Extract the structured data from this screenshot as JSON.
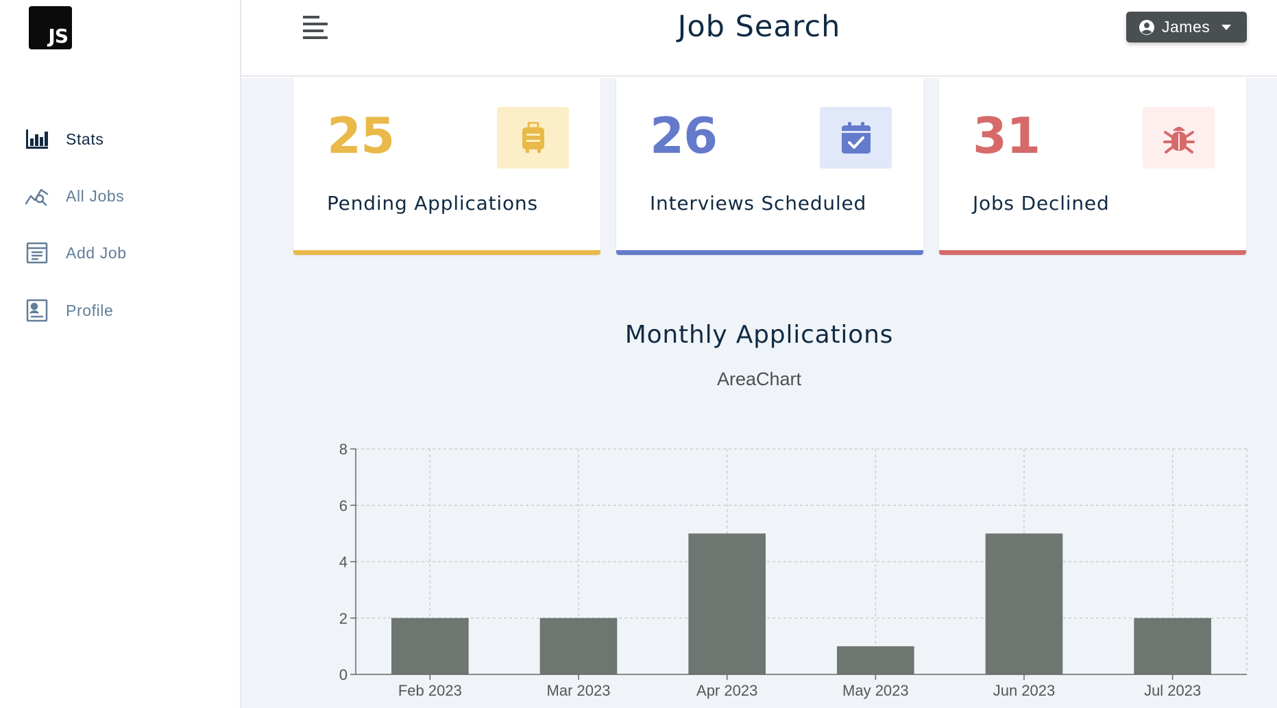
{
  "app": {
    "logo_text": "JS",
    "title": "Job Search"
  },
  "sidebar": {
    "items": [
      {
        "label": "Stats",
        "icon": "bar-chart-icon",
        "active": true
      },
      {
        "label": "All Jobs",
        "icon": "chart-search-icon",
        "active": false
      },
      {
        "label": "Add Job",
        "icon": "form-icon",
        "active": false
      },
      {
        "label": "Profile",
        "icon": "id-card-icon",
        "active": false
      }
    ]
  },
  "header": {
    "user_name": "James",
    "user_icon": "user-circle-icon",
    "toggle_icon": "menu-icon"
  },
  "stats": [
    {
      "count": "25",
      "label": "Pending Applications",
      "icon": "suitcase-icon",
      "color": "#e9b949",
      "bg": "#fcefc7"
    },
    {
      "count": "26",
      "label": "Interviews Scheduled",
      "icon": "calendar-check-icon",
      "color": "#647acb",
      "bg": "#e0e8f9"
    },
    {
      "count": "31",
      "label": "Jobs Declined",
      "icon": "bug-icon",
      "color": "#d66a6a",
      "bg": "#ffeeee"
    }
  ],
  "chart_section": {
    "title": "Monthly Applications",
    "toggle_label": "AreaChart"
  },
  "chart_data": {
    "type": "bar",
    "categories": [
      "Feb 2023",
      "Mar 2023",
      "Apr 2023",
      "May 2023",
      "Jun 2023",
      "Jul 2023"
    ],
    "values": [
      2,
      2,
      5,
      1,
      5,
      2
    ],
    "title": "",
    "xlabel": "",
    "ylabel": "",
    "ylim": [
      0,
      8
    ],
    "yticks": [
      0,
      2,
      4,
      6,
      8
    ],
    "grid": true,
    "bar_color": "#6e7672"
  }
}
